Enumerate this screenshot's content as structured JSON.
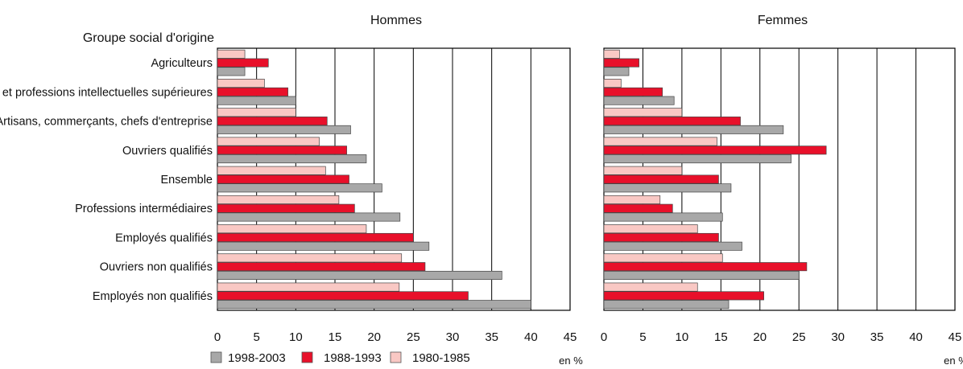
{
  "chart_data": [
    {
      "type": "bar",
      "orientation": "horizontal",
      "title": "Hommes",
      "row_header": "Groupe social d'origine",
      "unit": "en %",
      "xlim": [
        0,
        45
      ],
      "xticks": [
        "0",
        "5",
        "10",
        "15",
        "20",
        "25",
        "30",
        "35",
        "40",
        "45"
      ],
      "grid": true,
      "categories": [
        "Agriculteurs",
        "Cadres et professions intellectuelles supérieures",
        "Artisans, commerçants, chefs d'entreprise",
        "Ouvriers qualifiés",
        "Ensemble",
        "Professions intermédiaires",
        "Employés qualifiés",
        "Ouvriers non qualifiés",
        "Employés non qualifiés"
      ],
      "series": [
        {
          "name": "1980-1985",
          "values": [
            3.5,
            6,
            10,
            13,
            13.8,
            15.5,
            19,
            23.5,
            23.2
          ]
        },
        {
          "name": "1988-1993",
          "values": [
            6.5,
            9,
            14,
            16.5,
            16.8,
            17.5,
            25,
            26.5,
            32
          ]
        },
        {
          "name": "1998-2003",
          "values": [
            3.5,
            10,
            17,
            19,
            21,
            23.3,
            27,
            36.3,
            40
          ]
        }
      ]
    },
    {
      "type": "bar",
      "orientation": "horizontal",
      "title": "Femmes",
      "unit": "en %",
      "xlim": [
        0,
        45
      ],
      "xticks": [
        "0",
        "5",
        "10",
        "15",
        "20",
        "25",
        "30",
        "35",
        "40",
        "45"
      ],
      "grid": true,
      "categories": [
        "Agriculteurs",
        "Cadres et professions intellectuelles supérieures",
        "Artisans, commerçants, chefs d'entreprise",
        "Ouvriers qualifiés",
        "Ensemble",
        "Professions intermédiaires",
        "Employés qualifiés",
        "Ouvriers non qualifiés",
        "Employés non qualifiés"
      ],
      "series": [
        {
          "name": "1980-1985",
          "values": [
            2,
            2.2,
            10,
            14.5,
            10,
            7.2,
            12,
            15.2,
            12
          ]
        },
        {
          "name": "1988-1993",
          "values": [
            4.5,
            7.5,
            17.5,
            28.5,
            14.7,
            8.8,
            14.7,
            26,
            20.5
          ]
        },
        {
          "name": "1998-2003",
          "values": [
            3.2,
            9,
            23,
            24,
            16.3,
            15.2,
            17.7,
            25,
            16
          ]
        }
      ]
    }
  ],
  "legend": [
    {
      "name": "1998-2003",
      "color": "#a8a8a8"
    },
    {
      "name": "1988-1993",
      "color": "#e8102a"
    },
    {
      "name": "1980-1985",
      "color": "#f9c8c4"
    }
  ],
  "colors": {
    "1998-2003": "#a8a8a8",
    "1988-1993": "#e8102a",
    "1980-1985": "#f9c8c4"
  }
}
